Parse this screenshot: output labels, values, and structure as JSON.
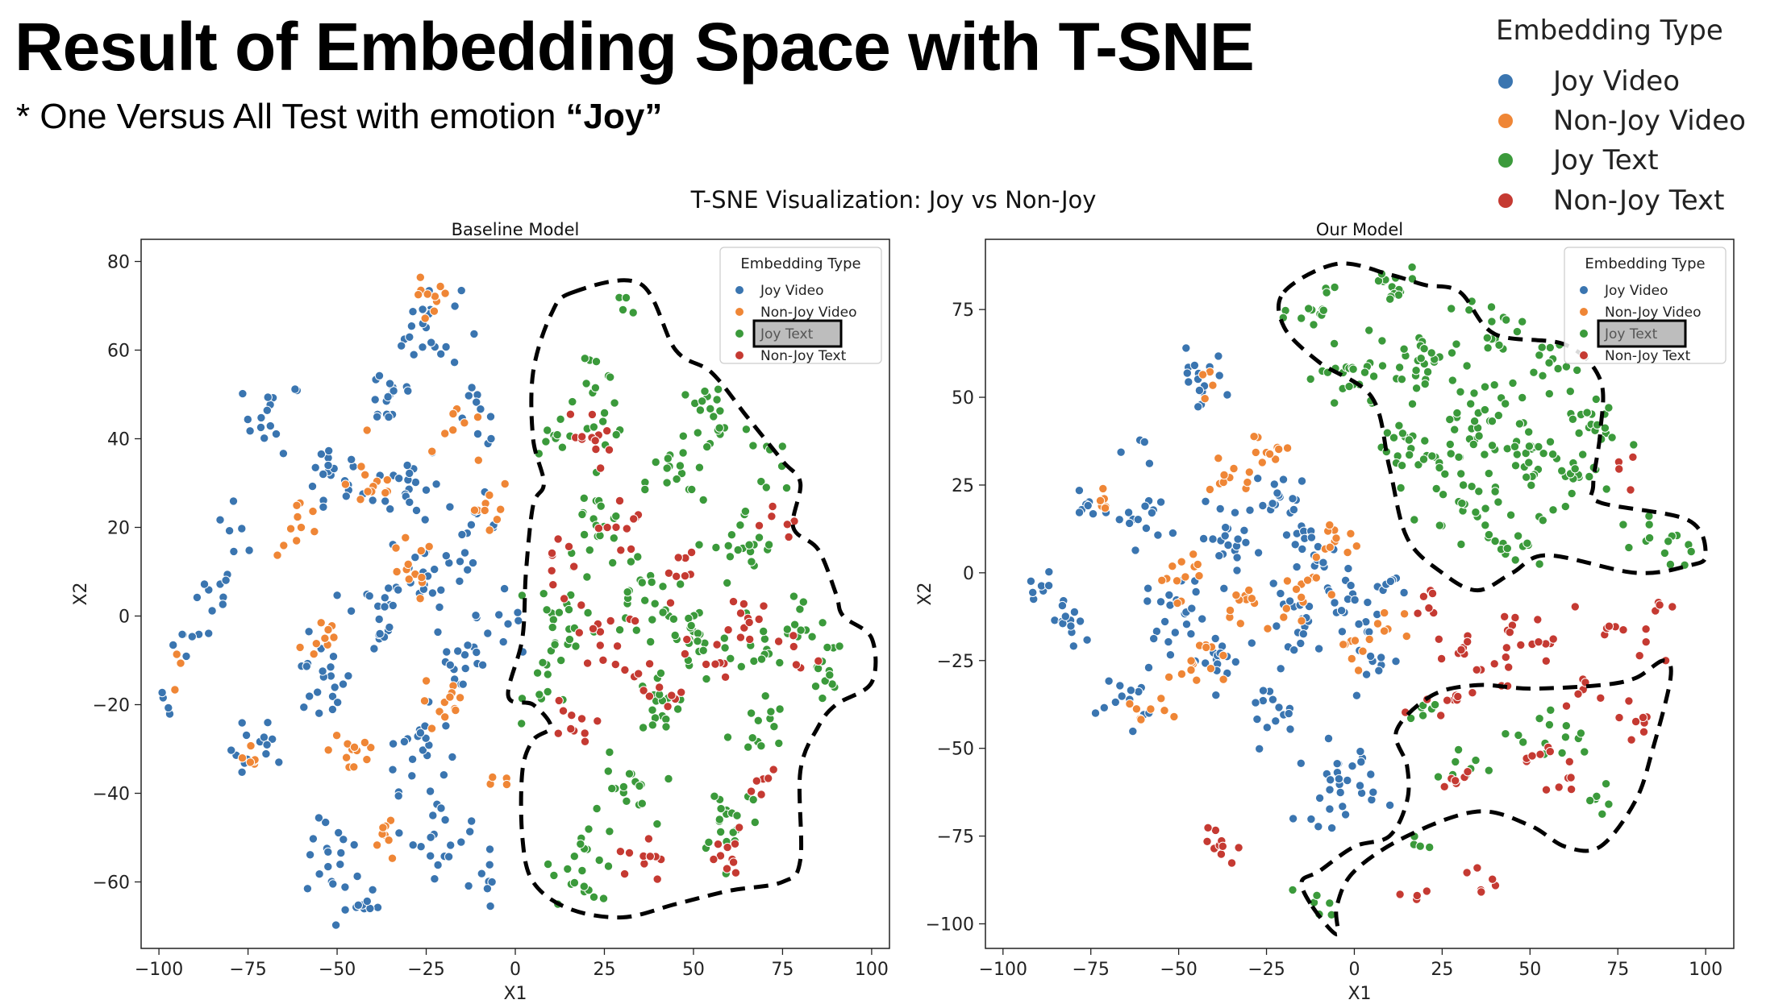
{
  "header": {
    "title": "Result of Embedding Space with T-SNE",
    "subtitle_prefix": "* One Versus All Test with emotion ",
    "subtitle_emphasis": "“Joy”"
  },
  "figure_legend": {
    "title": "Embedding Type",
    "items": [
      {
        "label": "Joy Video",
        "color": "#3a75b0"
      },
      {
        "label": "Non-Joy Video",
        "color": "#ef8636"
      },
      {
        "label": "Joy Text",
        "color": "#3b9a3b"
      },
      {
        "label": "Non-Joy Text",
        "color": "#c53a32"
      }
    ]
  },
  "suptitle": "T-SNE Visualization: Joy vs Non-Joy",
  "chart_data": [
    {
      "type": "scatter",
      "title": "Baseline Model",
      "xlabel": "X1",
      "ylabel": "X2",
      "xlim": [
        -105,
        105
      ],
      "ylim": [
        -75,
        85
      ],
      "xticks": [
        -100,
        -75,
        -50,
        -25,
        0,
        25,
        50,
        75,
        100
      ],
      "yticks": [
        -60,
        -40,
        -20,
        0,
        20,
        40,
        60,
        80
      ],
      "legend": {
        "title": "Embedding Type",
        "placement": "top-right",
        "highlighted": "Joy Text"
      },
      "grid": false,
      "series": [
        {
          "name": "Joy Video",
          "color": "#3a75b0",
          "clusters": [
            [
              -98,
              -21,
              4
            ],
            [
              -90,
              -5,
              6
            ],
            [
              -85,
              5,
              10
            ],
            [
              -78,
              20,
              6
            ],
            [
              -72,
              -30,
              14
            ],
            [
              -68,
              45,
              16
            ],
            [
              -55,
              -15,
              20
            ],
            [
              -52,
              30,
              18
            ],
            [
              -50,
              -55,
              18
            ],
            [
              -45,
              -65,
              10
            ],
            [
              -40,
              0,
              18
            ],
            [
              -35,
              50,
              16
            ],
            [
              -30,
              30,
              20
            ],
            [
              -28,
              -30,
              20
            ],
            [
              -25,
              10,
              25
            ],
            [
              -25,
              65,
              22
            ],
            [
              -20,
              -50,
              18
            ],
            [
              -15,
              -10,
              18
            ],
            [
              -12,
              20,
              12
            ],
            [
              -10,
              45,
              10
            ],
            [
              -8,
              -60,
              8
            ],
            [
              -5,
              0,
              8
            ]
          ]
        },
        {
          "name": "Non-Joy Video",
          "color": "#ef8636",
          "clusters": [
            [
              -92,
              -12,
              3
            ],
            [
              -75,
              -35,
              6
            ],
            [
              -60,
              20,
              10
            ],
            [
              -55,
              -5,
              10
            ],
            [
              -45,
              -30,
              12
            ],
            [
              -40,
              30,
              12
            ],
            [
              -35,
              -50,
              8
            ],
            [
              -30,
              10,
              12
            ],
            [
              -25,
              70,
              10
            ],
            [
              -20,
              -20,
              12
            ],
            [
              -15,
              40,
              8
            ],
            [
              -8,
              25,
              10
            ],
            [
              -5,
              -40,
              4
            ]
          ]
        },
        {
          "name": "Joy Text",
          "color": "#3b9a3b",
          "clusters": [
            [
              10,
              -15,
              12
            ],
            [
              12,
              40,
              10
            ],
            [
              15,
              0,
              20
            ],
            [
              20,
              -55,
              22
            ],
            [
              22,
              20,
              18
            ],
            [
              25,
              48,
              14
            ],
            [
              30,
              -40,
              16
            ],
            [
              35,
              5,
              22
            ],
            [
              40,
              -20,
              18
            ],
            [
              45,
              30,
              16
            ],
            [
              50,
              -5,
              24
            ],
            [
              55,
              45,
              20
            ],
            [
              60,
              -45,
              20
            ],
            [
              65,
              15,
              20
            ],
            [
              68,
              -25,
              14
            ],
            [
              70,
              -5,
              14
            ],
            [
              75,
              35,
              8
            ],
            [
              80,
              0,
              10
            ],
            [
              85,
              -15,
              8
            ],
            [
              88,
              -10,
              6
            ],
            [
              30,
              70,
              4
            ],
            [
              20,
              60,
              4
            ]
          ]
        },
        {
          "name": "Non-Joy Text",
          "color": "#c53a32",
          "clusters": [
            [
              10,
              10,
              8
            ],
            [
              15,
              -25,
              10
            ],
            [
              20,
              40,
              12
            ],
            [
              25,
              -5,
              14
            ],
            [
              30,
              20,
              10
            ],
            [
              35,
              -55,
              10
            ],
            [
              40,
              -15,
              10
            ],
            [
              45,
              10,
              8
            ],
            [
              55,
              -10,
              10
            ],
            [
              60,
              -55,
              10
            ],
            [
              65,
              0,
              10
            ],
            [
              75,
              20,
              6
            ],
            [
              80,
              -10,
              6
            ],
            [
              70,
              -40,
              6
            ]
          ]
        }
      ],
      "highlight_regions": [
        "Joy Text region (dashed outline)"
      ]
    },
    {
      "type": "scatter",
      "title": "Our Model",
      "xlabel": "X1",
      "ylabel": "X2",
      "xlim": [
        -105,
        108
      ],
      "ylim": [
        -107,
        95
      ],
      "xticks": [
        -100,
        -75,
        -50,
        -25,
        0,
        25,
        50,
        75,
        100
      ],
      "yticks": [
        -100,
        -75,
        -50,
        -25,
        0,
        25,
        50,
        75
      ],
      "legend": {
        "title": "Embedding Type",
        "placement": "top-right",
        "highlighted": "Joy Text"
      },
      "grid": false,
      "series": [
        {
          "name": "Joy Video",
          "color": "#3a75b0",
          "clusters": [
            [
              -90,
              -5,
              8
            ],
            [
              -80,
              -15,
              12
            ],
            [
              -75,
              20,
              8
            ],
            [
              -65,
              -35,
              14
            ],
            [
              -60,
              15,
              14
            ],
            [
              -50,
              -10,
              20
            ],
            [
              -45,
              55,
              16
            ],
            [
              -40,
              -25,
              16
            ],
            [
              -35,
              10,
              20
            ],
            [
              -25,
              -40,
              14
            ],
            [
              -20,
              20,
              18
            ],
            [
              -15,
              -15,
              18
            ],
            [
              -10,
              5,
              20
            ],
            [
              -5,
              -60,
              30
            ],
            [
              0,
              -10,
              16
            ],
            [
              5,
              -25,
              10
            ],
            [
              10,
              -5,
              8
            ],
            [
              -60,
              35,
              4
            ]
          ]
        },
        {
          "name": "Non-Joy Video",
          "color": "#ef8636",
          "clusters": [
            [
              -70,
              20,
              6
            ],
            [
              -60,
              -40,
              8
            ],
            [
              -50,
              0,
              12
            ],
            [
              -45,
              -25,
              14
            ],
            [
              -35,
              25,
              10
            ],
            [
              -30,
              -10,
              12
            ],
            [
              -25,
              35,
              10
            ],
            [
              -15,
              -5,
              12
            ],
            [
              -5,
              10,
              10
            ],
            [
              0,
              -20,
              8
            ],
            [
              10,
              -15,
              6
            ],
            [
              -40,
              50,
              4
            ]
          ]
        },
        {
          "name": "Joy Text",
          "color": "#3b9a3b",
          "clusters": [
            [
              -10,
              75,
              14
            ],
            [
              0,
              55,
              22
            ],
            [
              10,
              80,
              14
            ],
            [
              15,
              35,
              24
            ],
            [
              20,
              60,
              26
            ],
            [
              30,
              20,
              26
            ],
            [
              35,
              45,
              30
            ],
            [
              40,
              70,
              16
            ],
            [
              45,
              10,
              16
            ],
            [
              50,
              35,
              24
            ],
            [
              55,
              60,
              14
            ],
            [
              60,
              25,
              16
            ],
            [
              65,
              45,
              10
            ],
            [
              70,
              40,
              10
            ],
            [
              80,
              10,
              6
            ],
            [
              90,
              5,
              8
            ],
            [
              20,
              -40,
              6
            ],
            [
              30,
              -55,
              8
            ],
            [
              50,
              -45,
              6
            ],
            [
              60,
              -50,
              8
            ],
            [
              70,
              -65,
              6
            ],
            [
              -10,
              -95,
              6
            ],
            [
              20,
              -75,
              4
            ]
          ]
        },
        {
          "name": "Non-Joy Text",
          "color": "#c53a32",
          "clusters": [
            [
              -40,
              -78,
              10
            ],
            [
              20,
              -10,
              6
            ],
            [
              30,
              -20,
              8
            ],
            [
              45,
              -15,
              6
            ],
            [
              55,
              -20,
              8
            ],
            [
              70,
              -15,
              6
            ],
            [
              85,
              -20,
              4
            ],
            [
              25,
              -35,
              8
            ],
            [
              40,
              -30,
              8
            ],
            [
              65,
              -35,
              6
            ],
            [
              80,
              -40,
              8
            ],
            [
              30,
              -60,
              6
            ],
            [
              50,
              -50,
              6
            ],
            [
              60,
              -60,
              6
            ],
            [
              35,
              -88,
              6
            ],
            [
              20,
              -93,
              4
            ],
            [
              80,
              30,
              4
            ],
            [
              90,
              -10,
              4
            ]
          ]
        }
      ],
      "highlight_regions": [
        "Joy Text region (dashed outline)",
        "Lower Joy Text region (dashed outline)"
      ]
    }
  ]
}
